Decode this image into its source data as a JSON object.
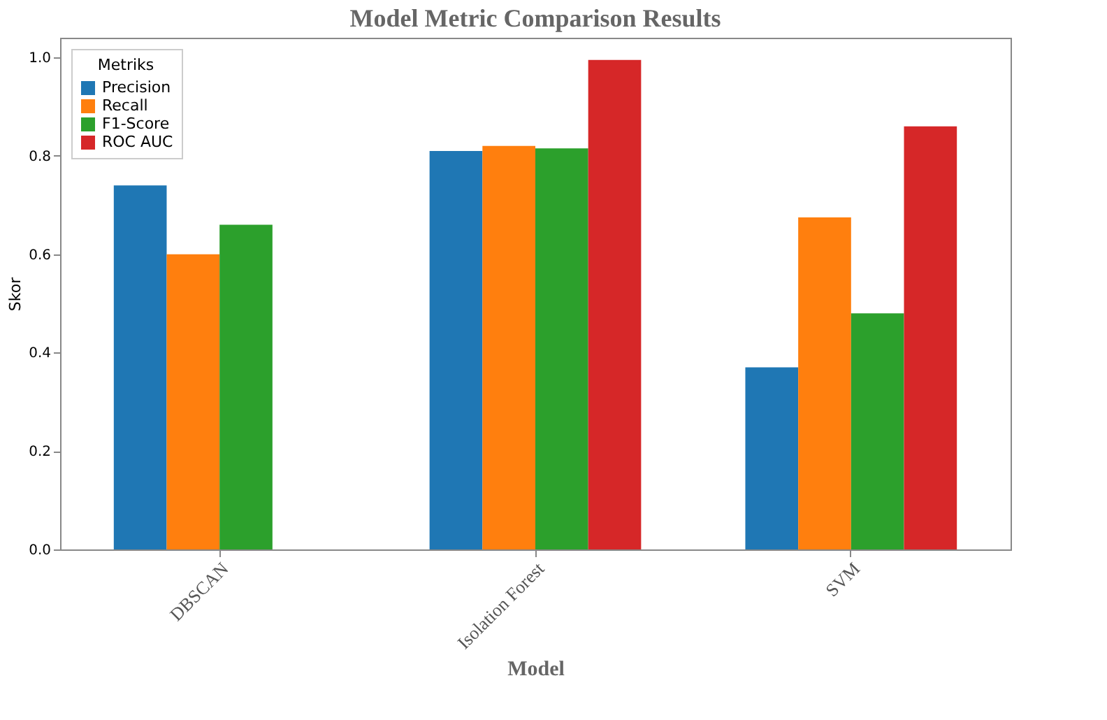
{
  "chart_data": {
    "type": "bar",
    "title": "Model Metric Comparison Results",
    "xlabel": "Model",
    "ylabel": "Skor",
    "legend_title": "Metriks",
    "categories": [
      "DBSCAN",
      "Isolation Forest",
      "SVM"
    ],
    "series": [
      {
        "name": "Precision",
        "color": "#1f77b4",
        "values": [
          0.74,
          0.81,
          0.37
        ]
      },
      {
        "name": "Recall",
        "color": "#ff7f0e",
        "values": [
          0.6,
          0.82,
          0.675
        ]
      },
      {
        "name": "F1-Score",
        "color": "#2ca02c",
        "values": [
          0.66,
          0.815,
          0.48
        ]
      },
      {
        "name": "ROC AUC",
        "color": "#d62728",
        "values": [
          null,
          0.995,
          0.86
        ]
      }
    ],
    "ylim": [
      0,
      1.04
    ],
    "yticks": [
      {
        "value": 0,
        "label": "0.0"
      },
      0.2,
      0.4,
      0.6,
      0.8,
      {
        "value": 1,
        "label": "1.0"
      }
    ],
    "grid": false,
    "legend": "top left"
  }
}
